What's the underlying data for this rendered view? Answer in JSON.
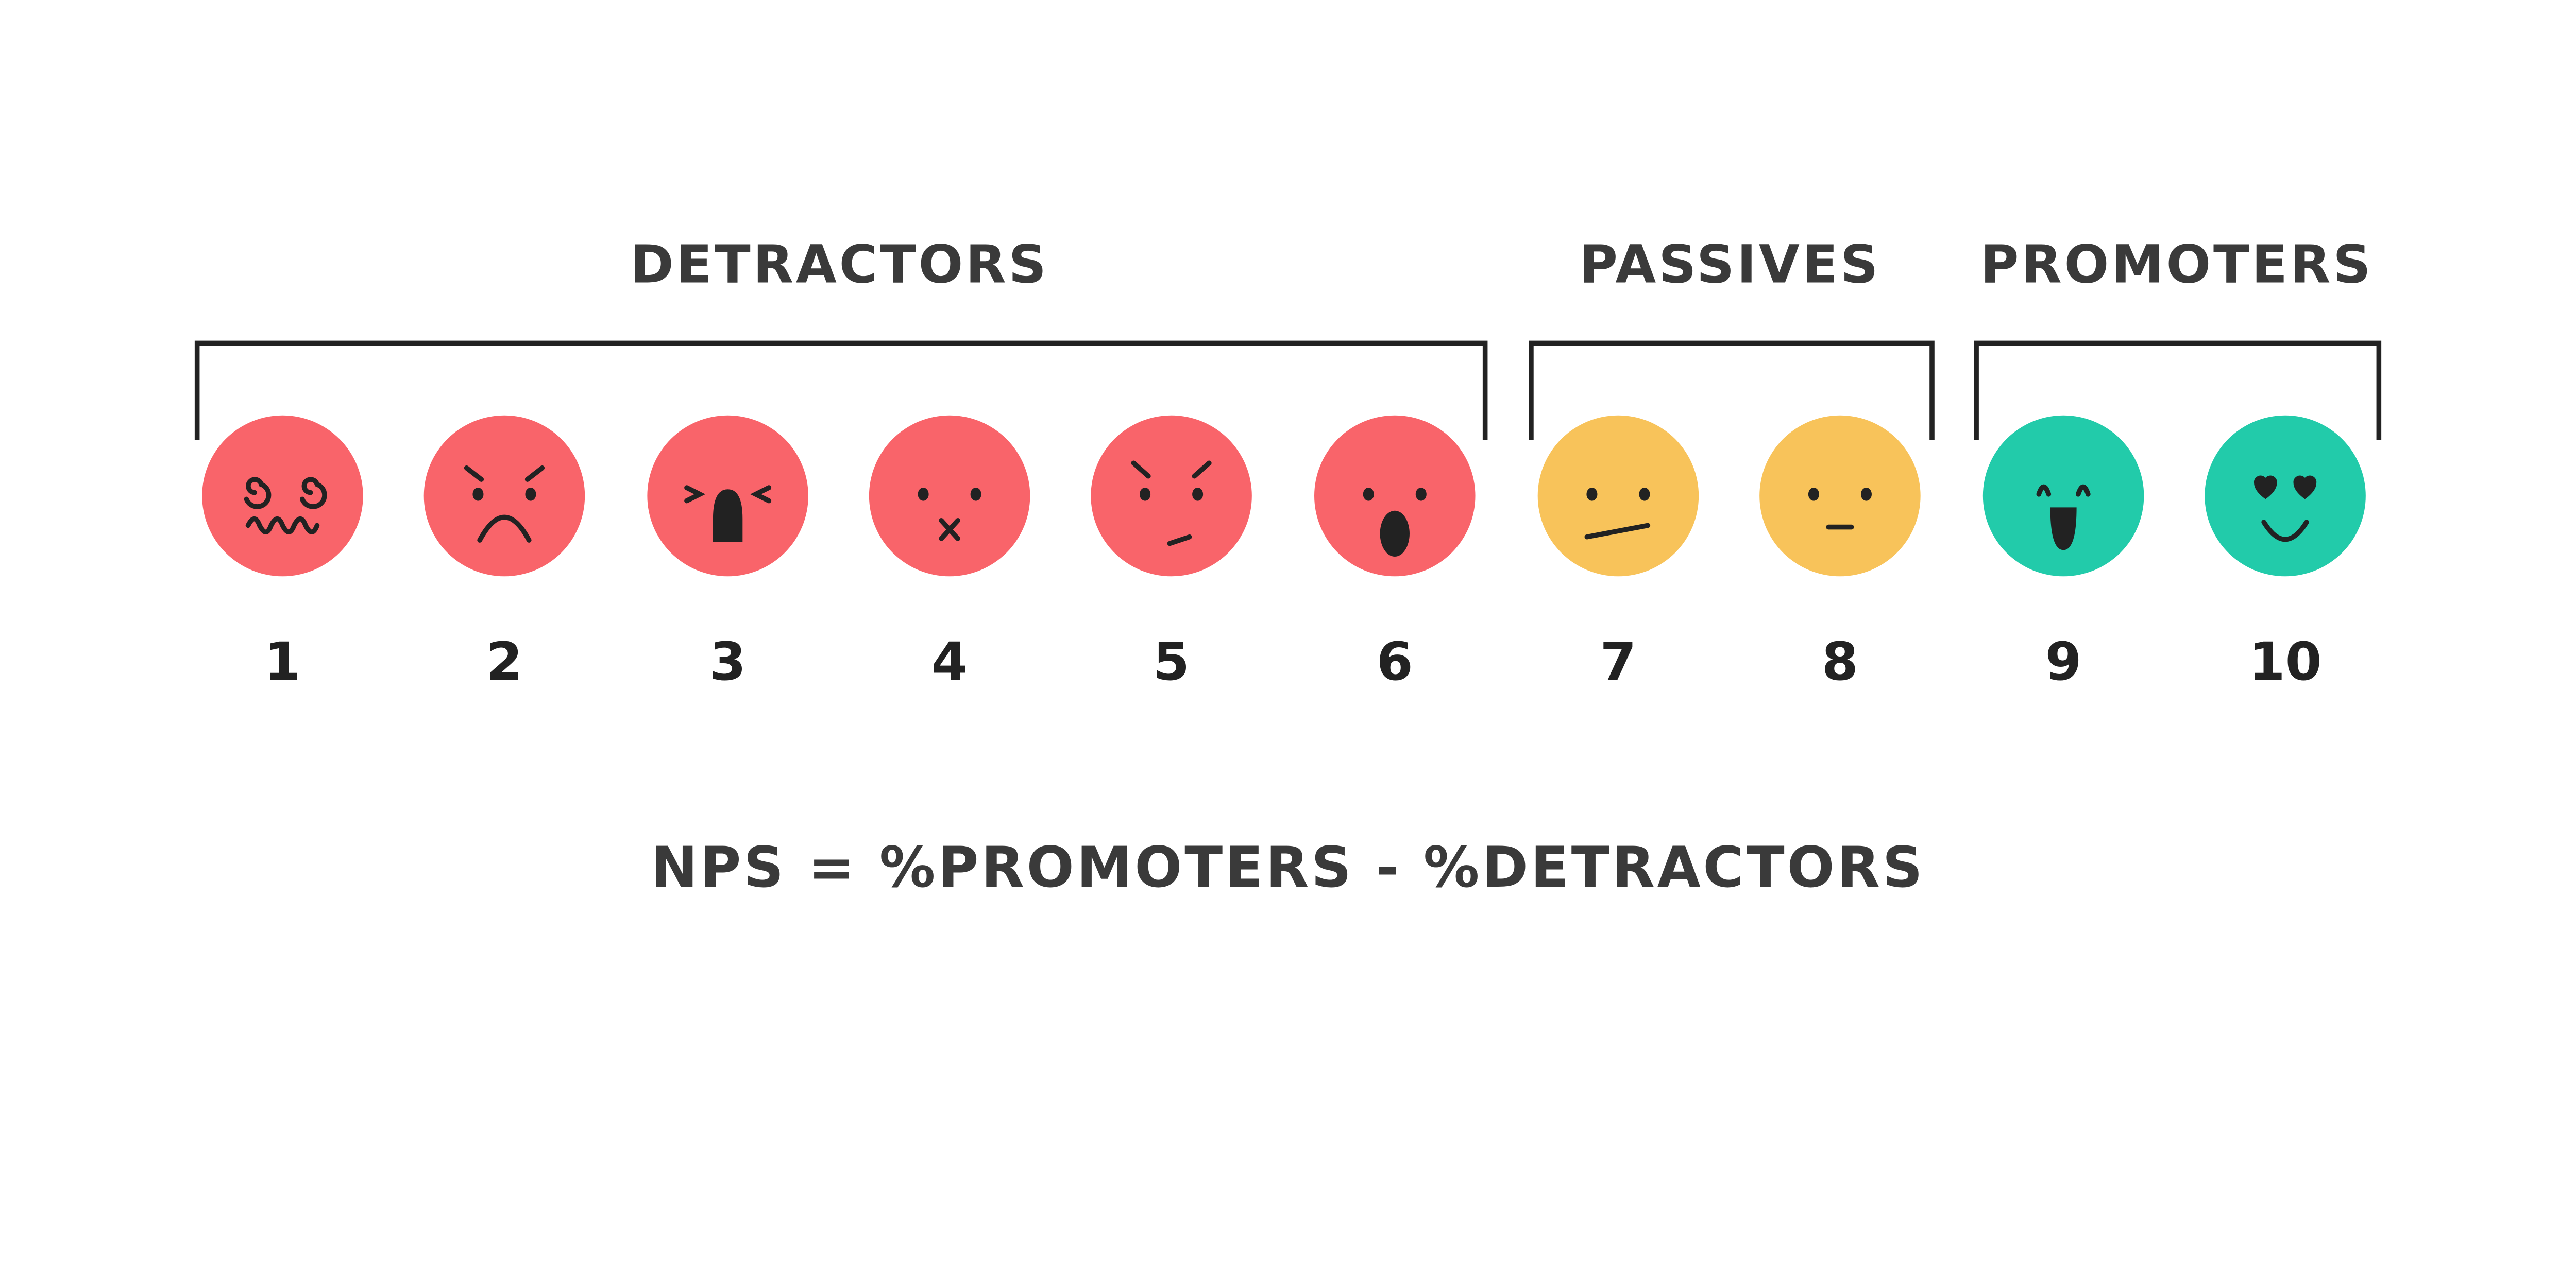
{
  "groups": [
    {
      "label": "DETRACTORS",
      "color": "#F9646A"
    },
    {
      "label": "PASSIVES",
      "color": "#F8C35A"
    },
    {
      "label": "PROMOTERS",
      "color": "#22CBAA"
    }
  ],
  "scores": [
    {
      "value": "1",
      "group": "detractor",
      "face": "dizzy-face-icon"
    },
    {
      "value": "2",
      "group": "detractor",
      "face": "angry-frown-face-icon"
    },
    {
      "value": "3",
      "group": "detractor",
      "face": "screaming-face-icon"
    },
    {
      "value": "4",
      "group": "detractor",
      "face": "mouth-x-face-icon"
    },
    {
      "value": "5",
      "group": "detractor",
      "face": "annoyed-face-icon"
    },
    {
      "value": "6",
      "group": "detractor",
      "face": "shocked-face-icon"
    },
    {
      "value": "7",
      "group": "passive",
      "face": "skeptical-face-icon"
    },
    {
      "value": "8",
      "group": "passive",
      "face": "neutral-face-icon"
    },
    {
      "value": "9",
      "group": "promoter",
      "face": "happy-face-icon"
    },
    {
      "value": "10",
      "group": "promoter",
      "face": "heart-eyes-face-icon"
    }
  ],
  "formula": "NPS = %PROMOTERS - %DETRACTORS",
  "text_color": "#3a3a3a"
}
